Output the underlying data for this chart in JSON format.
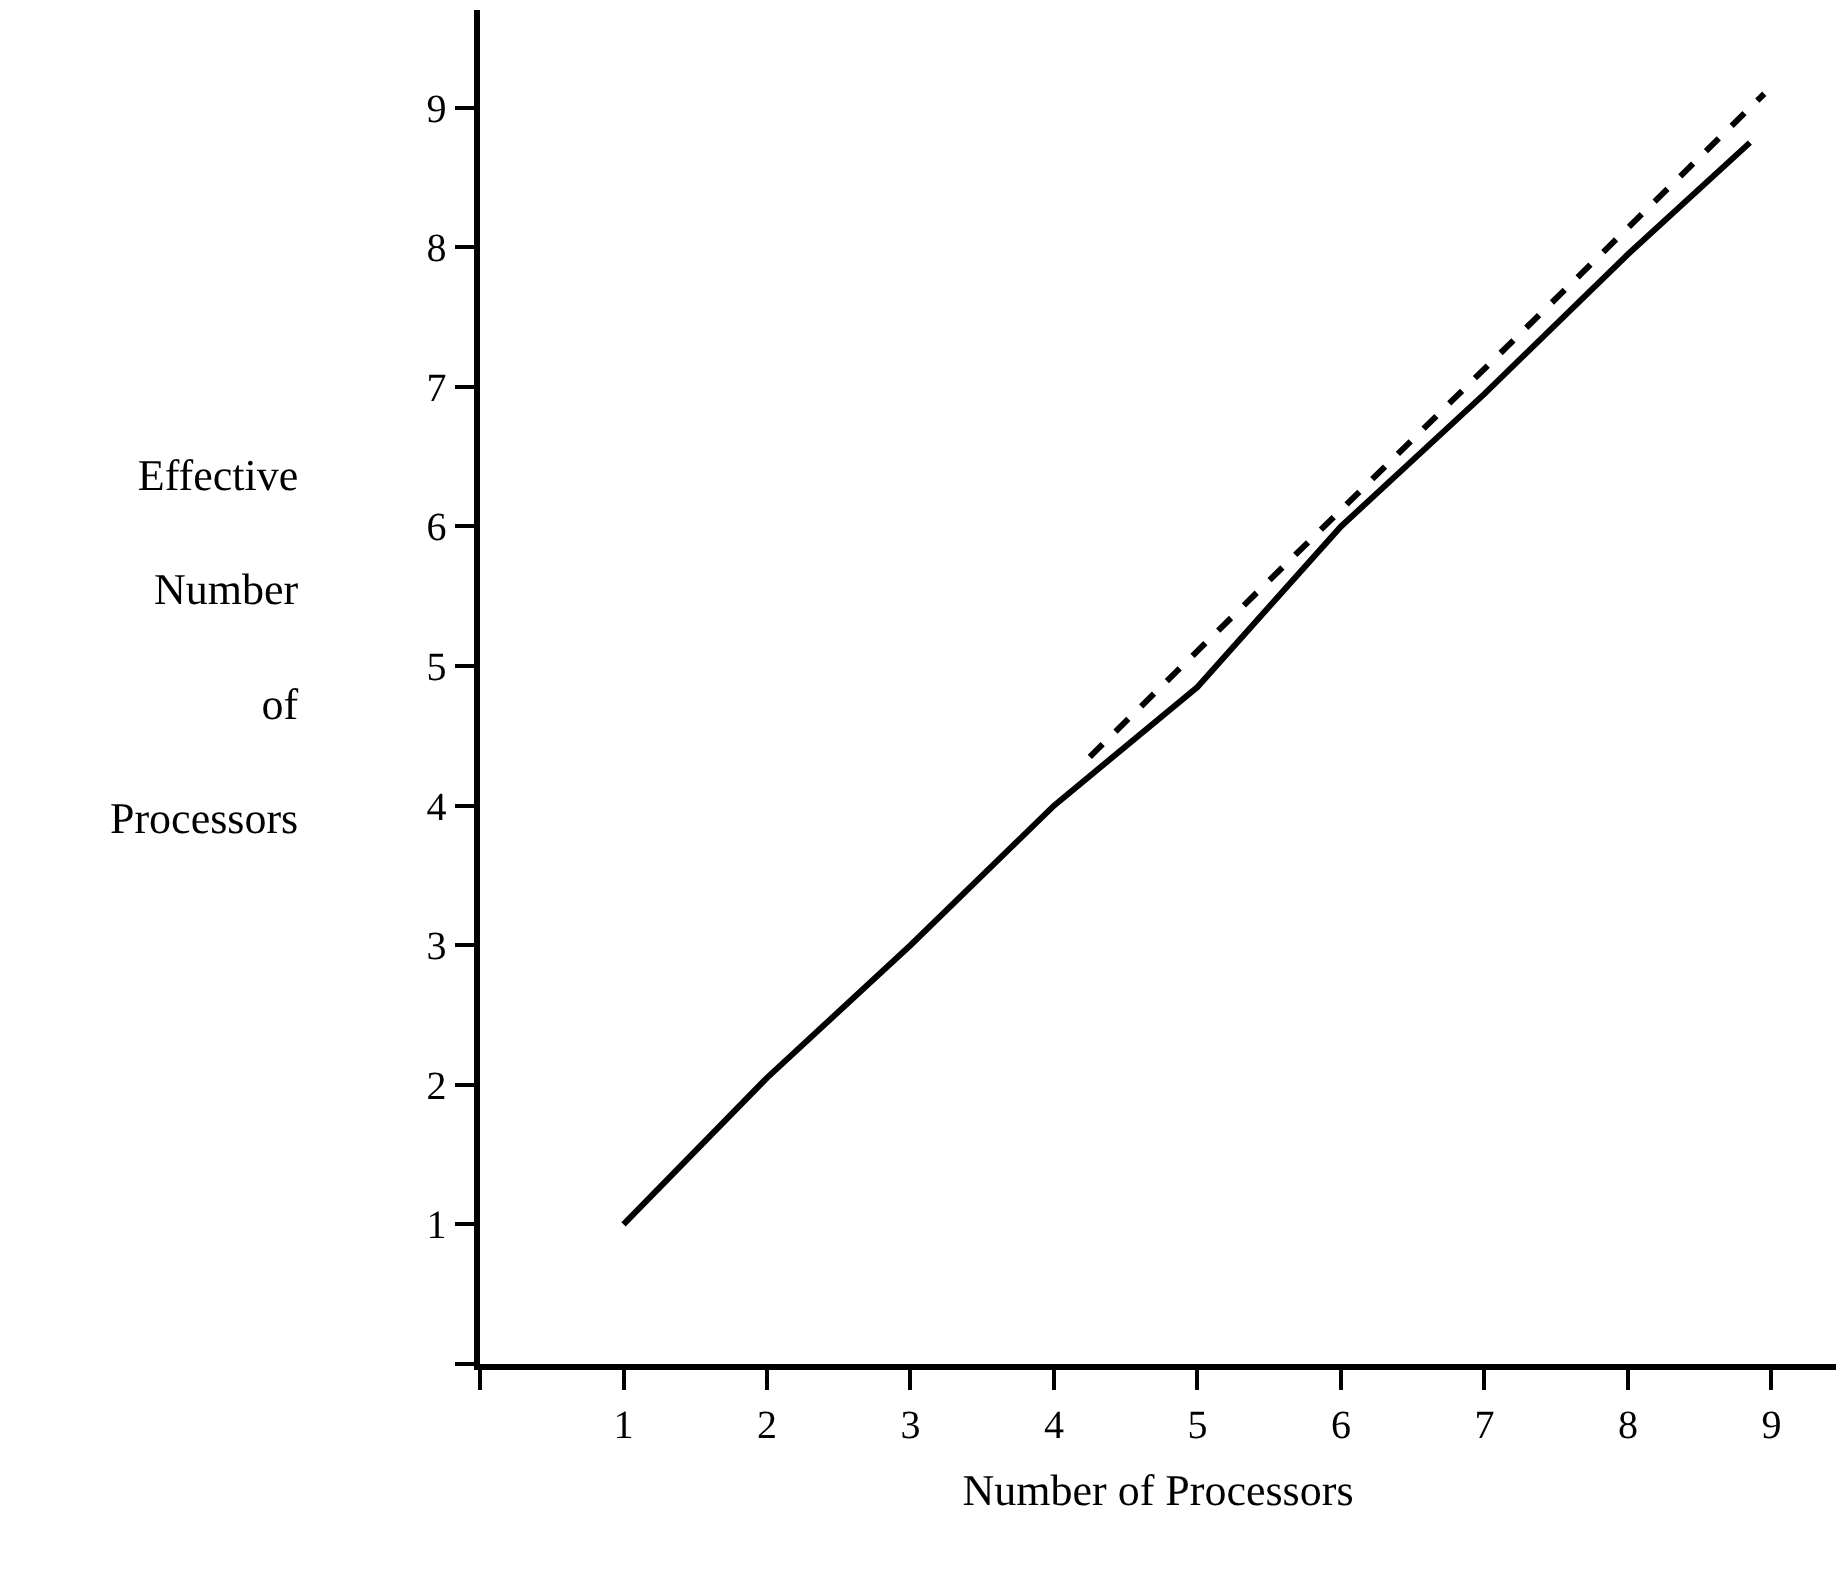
{
  "chart_data": {
    "type": "line",
    "xlabel": "Number of Processors",
    "ylabel": "Effective\nNumber\nof\nProcessors",
    "series": [
      {
        "color": "#000000",
        "line_style": "solid",
        "x": [
          1,
          2,
          3,
          4,
          5,
          6,
          7,
          8,
          8.85
        ],
        "values": [
          1,
          2.05,
          3,
          4,
          4.85,
          6,
          6.95,
          7.95,
          8.75
        ]
      },
      {
        "color": "#000000",
        "line_style": "dashed",
        "x": [
          4.25,
          8.95
        ],
        "values": [
          4.35,
          9.1
        ]
      }
    ],
    "xlim": [
      0,
      9.45
    ],
    "ylim": [
      0,
      9.7
    ],
    "xticks": [
      {
        "value": 0,
        "label": null
      },
      1,
      2,
      3,
      4,
      5,
      6,
      7,
      8,
      9
    ],
    "yticks": [
      {
        "value": 0,
        "label": null
      },
      1,
      2,
      3,
      4,
      5,
      6,
      7,
      8,
      9
    ],
    "marker": "none"
  }
}
